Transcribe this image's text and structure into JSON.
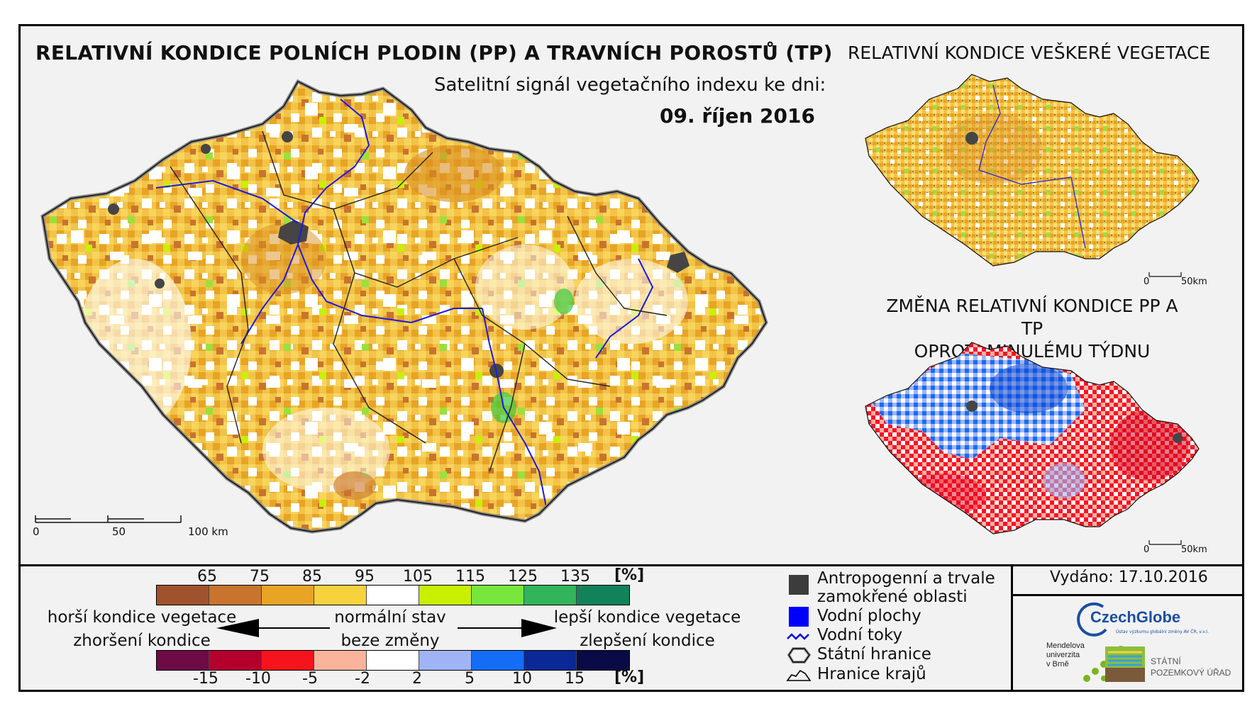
{
  "titles": {
    "main": "RELATIVNÍ KONDICE POLNÍCH PLODIN (PP) A TRAVNÍCH POROSTŮ (TP)",
    "subtitle": "Satelitní signál vegetačního indexu ke dni:",
    "date": "09. říjen 2016",
    "all_vegetation": "RELATIVNÍ KONDICE VEŠKERÉ VEGETACE",
    "change_line1": "ZMĚNA RELATIVNÍ KONDICE PP A TP",
    "change_line2": "OPROTI MINULÉMU TÝDNU"
  },
  "scalebars": {
    "main": [
      "0",
      "50",
      "100 km"
    ],
    "small_top": [
      "0",
      "50km"
    ],
    "small_bottom": [
      "0",
      "50km"
    ]
  },
  "legend_condition": {
    "ticks": [
      "65",
      "75",
      "85",
      "95",
      "105",
      "115",
      "125",
      "135"
    ],
    "unit": "[%]",
    "colors": [
      "#a0522d",
      "#c8742e",
      "#e8a424",
      "#f6d23c",
      "#ffffff",
      "#c8f000",
      "#78e63c",
      "#32b45a",
      "#12825a"
    ]
  },
  "legend_change": {
    "ticks": [
      "-15",
      "-10",
      "-5",
      "-2",
      "2",
      "5",
      "10",
      "15"
    ],
    "unit": "[%]",
    "colors": [
      "#6e0a46",
      "#b4002d",
      "#f5141e",
      "#fab49b",
      "#ffffff",
      "#a0b4f5",
      "#146ef5",
      "#0a2896",
      "#0a0a46"
    ]
  },
  "legend_text": {
    "worse": "horší kondice vegetace",
    "worse_change": "zhoršení kondice",
    "normal": "normální stav",
    "normal_change": "beze změny",
    "better": "lepší kondice vegetace",
    "better_change": "zlepšení kondice"
  },
  "symbols": [
    {
      "label_line1": "Antropogenní a trvale",
      "label_line2": "zamokřené oblasti",
      "icon": "dark-square-icon",
      "color": "#3c3c3c"
    },
    {
      "label_line1": "Vodní plochy",
      "icon": "blue-square-icon",
      "color": "#0000ff"
    },
    {
      "label_line1": "Vodní toky",
      "icon": "river-line-icon",
      "color": "#0000dc"
    },
    {
      "label_line1": "Státní hranice",
      "icon": "state-border-icon",
      "color": "#000000"
    },
    {
      "label_line1": "Hranice krajů",
      "icon": "region-border-icon",
      "color": "#000000"
    }
  ],
  "issued": "Vydáno: 17.10.2016",
  "logos": {
    "czechglobe": "CzechGlobe",
    "czechglobe_tag": "Ústav výzkumu globální změny AV ČR, v.v.i.",
    "mendel_line1": "Mendelova",
    "mendel_line2": "univerzita",
    "mendel_line3": "v Brně",
    "spu_line1": "STÁTNÍ",
    "spu_line2": "POZEMKOVÝ ÚŘAD"
  }
}
